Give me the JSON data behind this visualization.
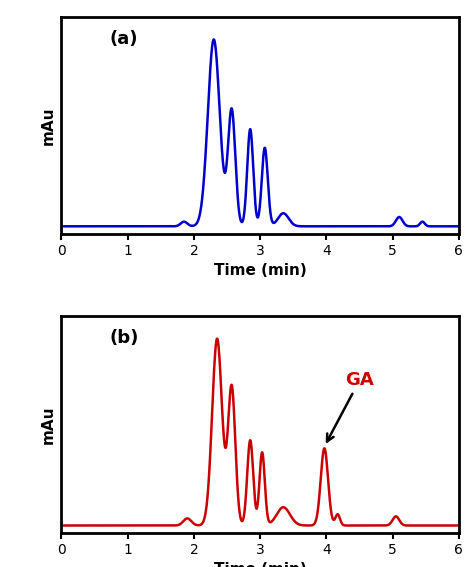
{
  "color_a": "#0000CC",
  "color_b": "#CC0000",
  "xlim": [
    0,
    6
  ],
  "xlabel": "Time (min)",
  "ylabel": "mAu",
  "label_a": "(a)",
  "label_b": "(b)",
  "ga_label": "GA",
  "figsize": [
    4.73,
    5.67
  ],
  "dpi": 100,
  "xticks": [
    0,
    1,
    2,
    3,
    4,
    5,
    6
  ]
}
